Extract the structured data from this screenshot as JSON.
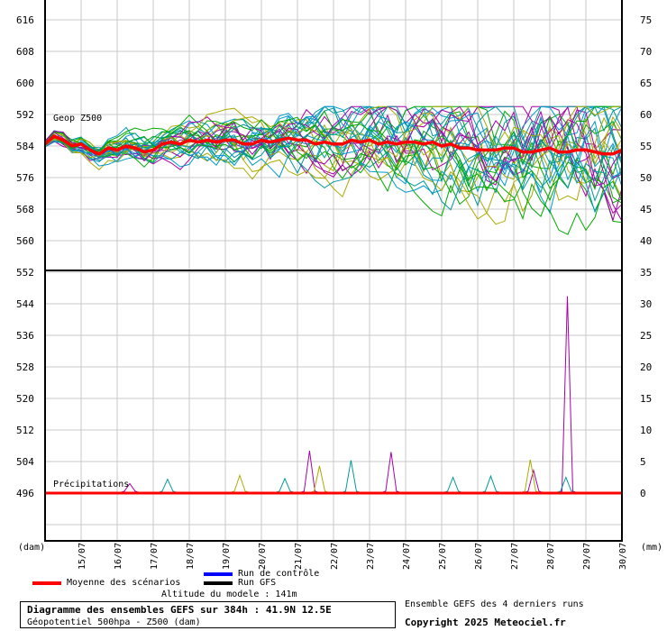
{
  "chart_data": [
    {
      "type": "line",
      "title": "Geop Z500",
      "left_axis": {
        "ticks": [
          560,
          568,
          576,
          584,
          592,
          600,
          608,
          616
        ],
        "min": 552,
        "max": 618
      },
      "right_axis": {
        "ticks": [
          40,
          45,
          50,
          55,
          60,
          65,
          70,
          75
        ]
      },
      "x_labels": [
        "15/07",
        "16/07",
        "17/07",
        "18/07",
        "19/07",
        "20/07",
        "21/07",
        "22/07",
        "23/07",
        "24/07",
        "25/07",
        "26/07",
        "27/07",
        "28/07",
        "29/07",
        "30/07"
      ],
      "mean_series": {
        "name": "Moyenne des scénarios",
        "values": [
          584.5,
          586.5,
          585.5,
          584.0,
          584.5,
          583.0,
          582.0,
          583.5,
          583.0,
          584.0,
          583.5,
          582.5,
          583.0,
          584.5,
          585.0,
          584.5,
          585.5,
          585.0,
          585.5,
          585.0,
          585.5,
          585.5,
          584.5,
          584.5,
          585.5,
          585.0,
          585.5,
          586.0,
          585.5,
          585.5,
          584.5,
          585.0,
          584.5,
          584.5,
          585.5,
          585.0,
          585.5,
          584.5,
          585.0,
          584.5,
          585.0,
          585.0,
          584.5,
          585.0,
          584.0,
          584.5,
          583.5,
          583.5,
          583.0,
          583.0,
          583.0,
          583.5,
          583.5,
          582.5,
          582.5,
          583.0,
          583.5,
          582.5,
          582.5,
          583.0,
          583.0,
          582.5,
          582.0,
          582.0,
          583.0
        ]
      },
      "ensemble_spread": {
        "min_value": 559,
        "max_value": 594,
        "members": 31
      }
    },
    {
      "type": "line",
      "title": "Précipitations",
      "left_axis": {
        "ticks": [
          496,
          504,
          512,
          520,
          528,
          536,
          544,
          552
        ]
      },
      "right_axis": {
        "ticks": [
          0,
          5,
          10,
          15,
          20,
          25,
          30,
          35
        ],
        "unit": "(mm)"
      },
      "peaks": [
        {
          "date": "17/07",
          "value_mm": 1.5,
          "color": "#aa00aa"
        },
        {
          "date": "18/07",
          "value_mm": 2.2,
          "color": "#009999"
        },
        {
          "date": "20/07",
          "value_mm": 2.8,
          "color": "#aaaa00"
        },
        {
          "date": "21/07",
          "value_mm": 2.3,
          "color": "#009999"
        },
        {
          "date": "22/07",
          "value_mm": 6.7,
          "color": "#aa00aa"
        },
        {
          "date": "22/07",
          "value_mm": 4.3,
          "color": "#aaaa00"
        },
        {
          "date": "23/07",
          "value_mm": 5.2,
          "color": "#009999"
        },
        {
          "date": "24/07",
          "value_mm": 6.5,
          "color": "#aa00aa"
        },
        {
          "date": "26/07",
          "value_mm": 2.5,
          "color": "#009999"
        },
        {
          "date": "27/07",
          "value_mm": 2.7,
          "color": "#009999"
        },
        {
          "date": "28/07",
          "value_mm": 3.6,
          "color": "#aa00aa"
        },
        {
          "date": "28/07",
          "value_mm": 5.3,
          "color": "#aaaa00"
        },
        {
          "date": "29/07",
          "value_mm": 31.2,
          "color": "#aa00aa"
        },
        {
          "date": "29/07",
          "value_mm": 2.5,
          "color": "#009999"
        }
      ]
    }
  ],
  "axis_units": {
    "left": "(dam)",
    "right": "(mm)"
  },
  "legend": {
    "control_run": "Run de contrôle",
    "gfs_run": "Run GFS",
    "mean": "Moyenne des scénarios",
    "colors": {
      "control": "#0000ff",
      "gfs": "#000000",
      "mean": "#ff0000"
    }
  },
  "altitude_text": "Altitude du modele : 141m",
  "info_title": "Diagramme des ensembles GEFS sur 384h : 41.9N 12.5E",
  "info_subtitle": "Géopotentiel 500hpa - Z500 (dam)",
  "runs_note": "Ensemble GEFS des 4 derniers runs",
  "copyright": "Copyright 2025 Meteociel.fr",
  "member_colors": [
    "#00aa00",
    "#aa00aa",
    "#aaaa00",
    "#009999",
    "#0099cc"
  ]
}
